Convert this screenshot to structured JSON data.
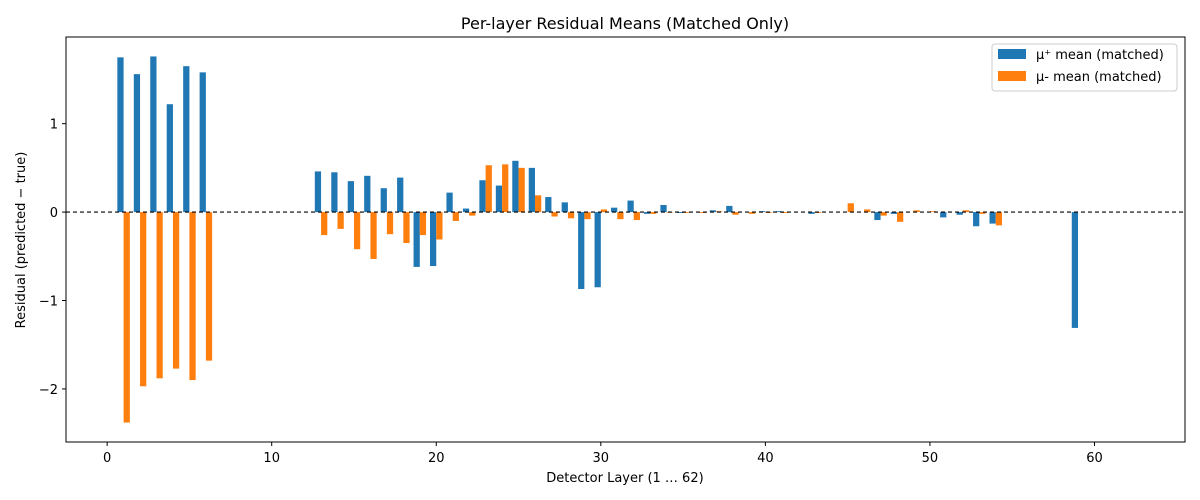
{
  "chart_data": {
    "type": "bar",
    "title": "Per-layer Residual Means (Matched Only)",
    "xlabel": "Detector Layer (1 … 62)",
    "ylabel": "Residual (predicted − true)",
    "xlim": [
      -2.5,
      65.5
    ],
    "ylim": [
      -2.6,
      1.98
    ],
    "xticks": [
      0,
      10,
      20,
      30,
      40,
      50,
      60
    ],
    "yticks": [
      -2,
      -1,
      0,
      1
    ],
    "ytick_labels": [
      "−2",
      "−1",
      "0",
      "1"
    ],
    "grid": false,
    "legend_position": "top-right",
    "reference_line": {
      "y": 0,
      "style": "dashed"
    },
    "bar_width": 0.38,
    "series": [
      {
        "name": "μ⁺ mean (matched)",
        "color": "#1f77b4",
        "points": [
          [
            1,
            1.75
          ],
          [
            2,
            1.56
          ],
          [
            3,
            1.76
          ],
          [
            4,
            1.22
          ],
          [
            5,
            1.65
          ],
          [
            6,
            1.58
          ],
          [
            13,
            0.46
          ],
          [
            14,
            0.45
          ],
          [
            15,
            0.35
          ],
          [
            16,
            0.41
          ],
          [
            17,
            0.27
          ],
          [
            18,
            0.39
          ],
          [
            19,
            -0.62
          ],
          [
            20,
            -0.61
          ],
          [
            21,
            0.22
          ],
          [
            22,
            0.04
          ],
          [
            23,
            0.36
          ],
          [
            24,
            0.3
          ],
          [
            25,
            0.58
          ],
          [
            26,
            0.5
          ],
          [
            27,
            0.17
          ],
          [
            28,
            0.11
          ],
          [
            29,
            -0.87
          ],
          [
            30,
            -0.85
          ],
          [
            31,
            0.05
          ],
          [
            32,
            0.13
          ],
          [
            33,
            -0.02
          ],
          [
            34,
            0.08
          ],
          [
            35,
            -0.01
          ],
          [
            37,
            0.02
          ],
          [
            38,
            0.07
          ],
          [
            40,
            0.01
          ],
          [
            41,
            0.01
          ],
          [
            43,
            -0.02
          ],
          [
            47,
            -0.09
          ],
          [
            48,
            -0.02
          ],
          [
            51,
            -0.06
          ],
          [
            52,
            -0.03
          ],
          [
            53,
            -0.16
          ],
          [
            54,
            -0.13
          ],
          [
            59,
            -1.31
          ]
        ]
      },
      {
        "name": "μ- mean (matched)",
        "color": "#ff7f0e",
        "points": [
          [
            1,
            -2.38
          ],
          [
            2,
            -1.97
          ],
          [
            3,
            -1.88
          ],
          [
            4,
            -1.77
          ],
          [
            5,
            -1.9
          ],
          [
            6,
            -1.68
          ],
          [
            13,
            -0.26
          ],
          [
            14,
            -0.19
          ],
          [
            15,
            -0.42
          ],
          [
            16,
            -0.53
          ],
          [
            17,
            -0.25
          ],
          [
            18,
            -0.35
          ],
          [
            19,
            -0.26
          ],
          [
            20,
            -0.31
          ],
          [
            21,
            -0.1
          ],
          [
            22,
            -0.04
          ],
          [
            23,
            0.53
          ],
          [
            24,
            0.54
          ],
          [
            25,
            0.5
          ],
          [
            26,
            0.19
          ],
          [
            27,
            -0.05
          ],
          [
            28,
            -0.07
          ],
          [
            29,
            -0.08
          ],
          [
            30,
            0.03
          ],
          [
            31,
            -0.08
          ],
          [
            32,
            -0.09
          ],
          [
            33,
            -0.02
          ],
          [
            34,
            0.0
          ],
          [
            35,
            -0.01
          ],
          [
            36,
            -0.01
          ],
          [
            37,
            0.01
          ],
          [
            38,
            -0.03
          ],
          [
            39,
            -0.02
          ],
          [
            40,
            -0.01
          ],
          [
            41,
            -0.01
          ],
          [
            43,
            -0.01
          ],
          [
            45,
            0.1
          ],
          [
            46,
            0.03
          ],
          [
            47,
            -0.04
          ],
          [
            48,
            -0.11
          ],
          [
            49,
            0.02
          ],
          [
            50,
            0.01
          ],
          [
            52,
            0.02
          ],
          [
            53,
            -0.02
          ],
          [
            54,
            -0.15
          ]
        ]
      }
    ]
  }
}
